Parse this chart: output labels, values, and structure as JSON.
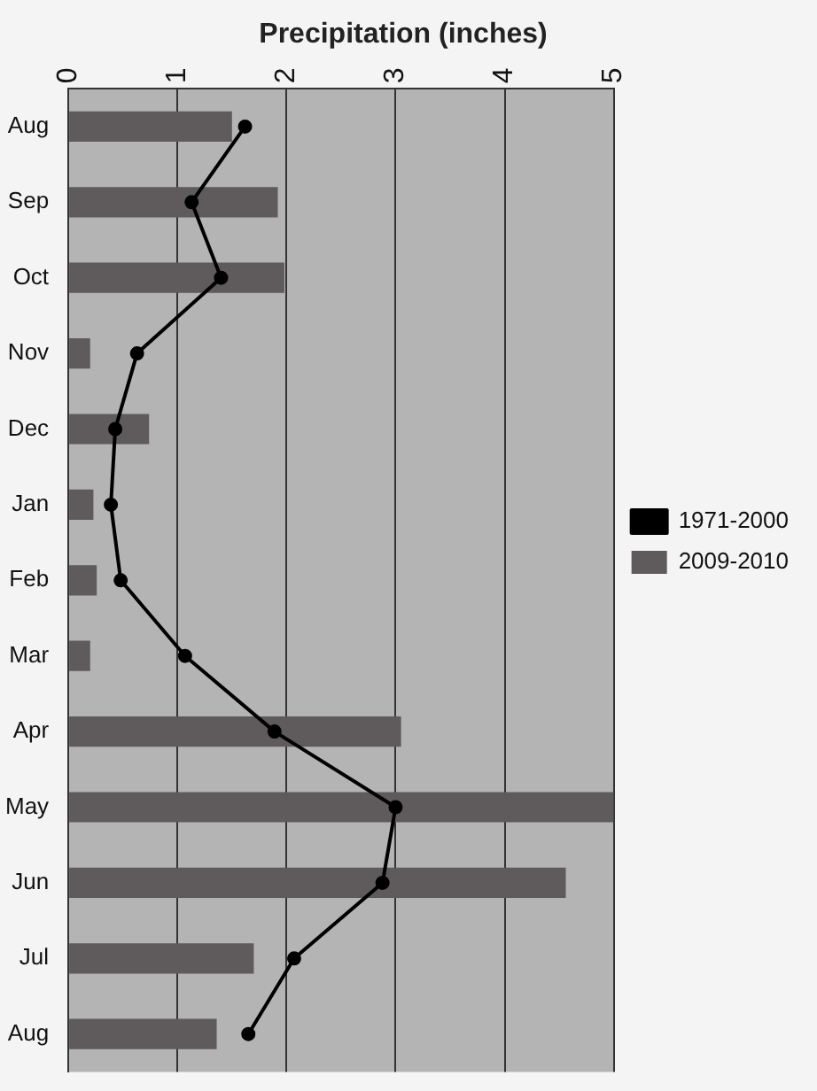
{
  "chart_data": {
    "type": "bar",
    "orientation": "horizontal",
    "title": "Precipitation (inches)",
    "categories": [
      "Aug",
      "Sep",
      "Oct",
      "Nov",
      "Dec",
      "Jan",
      "Feb",
      "Mar",
      "Apr",
      "May",
      "Jun",
      "Jul",
      "Aug"
    ],
    "series": [
      {
        "name": "2009-2010",
        "color": "#5f5a5c",
        "values": [
          1.5,
          1.92,
          1.98,
          0.2,
          0.74,
          0.23,
          0.26,
          0.2,
          3.05,
          5.0,
          4.56,
          1.7,
          1.36
        ]
      },
      {
        "name": "1971-2000",
        "type": "line",
        "color": "#000000",
        "marker": "circle",
        "values": [
          1.62,
          1.13,
          1.4,
          0.63,
          0.43,
          0.39,
          0.48,
          1.07,
          1.89,
          3.0,
          2.88,
          2.07,
          1.65
        ]
      }
    ],
    "xlim": [
      0,
      5
    ],
    "xticks": [
      0,
      1,
      2,
      3,
      4,
      5
    ],
    "grid": "x",
    "legend": "right"
  }
}
